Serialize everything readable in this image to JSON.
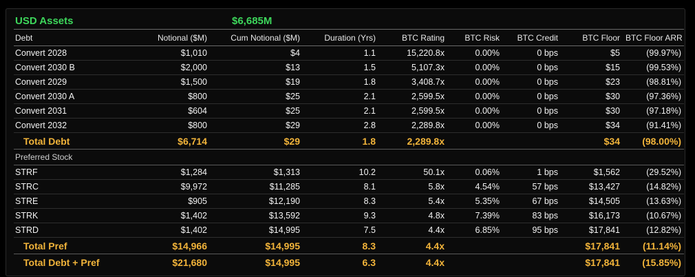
{
  "title": {
    "label": "USD Assets",
    "value": "$6,685M"
  },
  "columns": [
    "Debt",
    "Notional ($M)",
    "Cum Notional ($M)",
    "Duration (Yrs)",
    "BTC Rating",
    "BTC Risk",
    "BTC Credit",
    "BTC Floor",
    "BTC Floor ARR"
  ],
  "debt_rows": [
    [
      "Convert 2028",
      "$1,010",
      "$4",
      "1.1",
      "15,220.8x",
      "0.00%",
      "0 bps",
      "$5",
      "(99.97%)"
    ],
    [
      "Convert 2030 B",
      "$2,000",
      "$13",
      "1.5",
      "5,107.3x",
      "0.00%",
      "0 bps",
      "$15",
      "(99.53%)"
    ],
    [
      "Convert 2029",
      "$1,500",
      "$19",
      "1.8",
      "3,408.7x",
      "0.00%",
      "0 bps",
      "$23",
      "(98.81%)"
    ],
    [
      "Convert 2030 A",
      "$800",
      "$25",
      "2.1",
      "2,599.5x",
      "0.00%",
      "0 bps",
      "$30",
      "(97.36%)"
    ],
    [
      "Convert 2031",
      "$604",
      "$25",
      "2.1",
      "2,599.5x",
      "0.00%",
      "0 bps",
      "$30",
      "(97.18%)"
    ],
    [
      "Convert 2032",
      "$800",
      "$29",
      "2.8",
      "2,289.8x",
      "0.00%",
      "0 bps",
      "$34",
      "(91.41%)"
    ]
  ],
  "total_debt": [
    "Total Debt",
    "$6,714",
    "$29",
    "1.8",
    "2,289.8x",
    "",
    "",
    "$34",
    "(98.00%)"
  ],
  "pref_section_label": "Preferred Stock",
  "pref_rows": [
    [
      "STRF",
      "$1,284",
      "$1,313",
      "10.2",
      "50.1x",
      "0.06%",
      "1 bps",
      "$1,562",
      "(29.52%)"
    ],
    [
      "STRC",
      "$9,972",
      "$11,285",
      "8.1",
      "5.8x",
      "4.54%",
      "57 bps",
      "$13,427",
      "(14.82%)"
    ],
    [
      "STRE",
      "$905",
      "$12,190",
      "8.3",
      "5.4x",
      "5.35%",
      "67 bps",
      "$14,505",
      "(13.63%)"
    ],
    [
      "STRK",
      "$1,402",
      "$13,592",
      "9.3",
      "4.8x",
      "7.39%",
      "83 bps",
      "$16,173",
      "(10.67%)"
    ],
    [
      "STRD",
      "$1,402",
      "$14,995",
      "7.5",
      "4.4x",
      "6.85%",
      "95 bps",
      "$17,841",
      "(12.82%)"
    ]
  ],
  "total_pref": [
    "Total Pref",
    "$14,966",
    "$14,995",
    "8.3",
    "4.4x",
    "",
    "",
    "$17,841",
    "(11.14%)"
  ],
  "total_all": [
    "Total Debt + Pref",
    "$21,680",
    "$14,995",
    "6.3",
    "4.4x",
    "",
    "",
    "$17,841",
    "(15.85%)"
  ],
  "colors": {
    "title_green": "#3dd65b",
    "total_gold": "#f2b43a",
    "credit_green": "#6fd04d",
    "background": "#0b0b0b"
  }
}
